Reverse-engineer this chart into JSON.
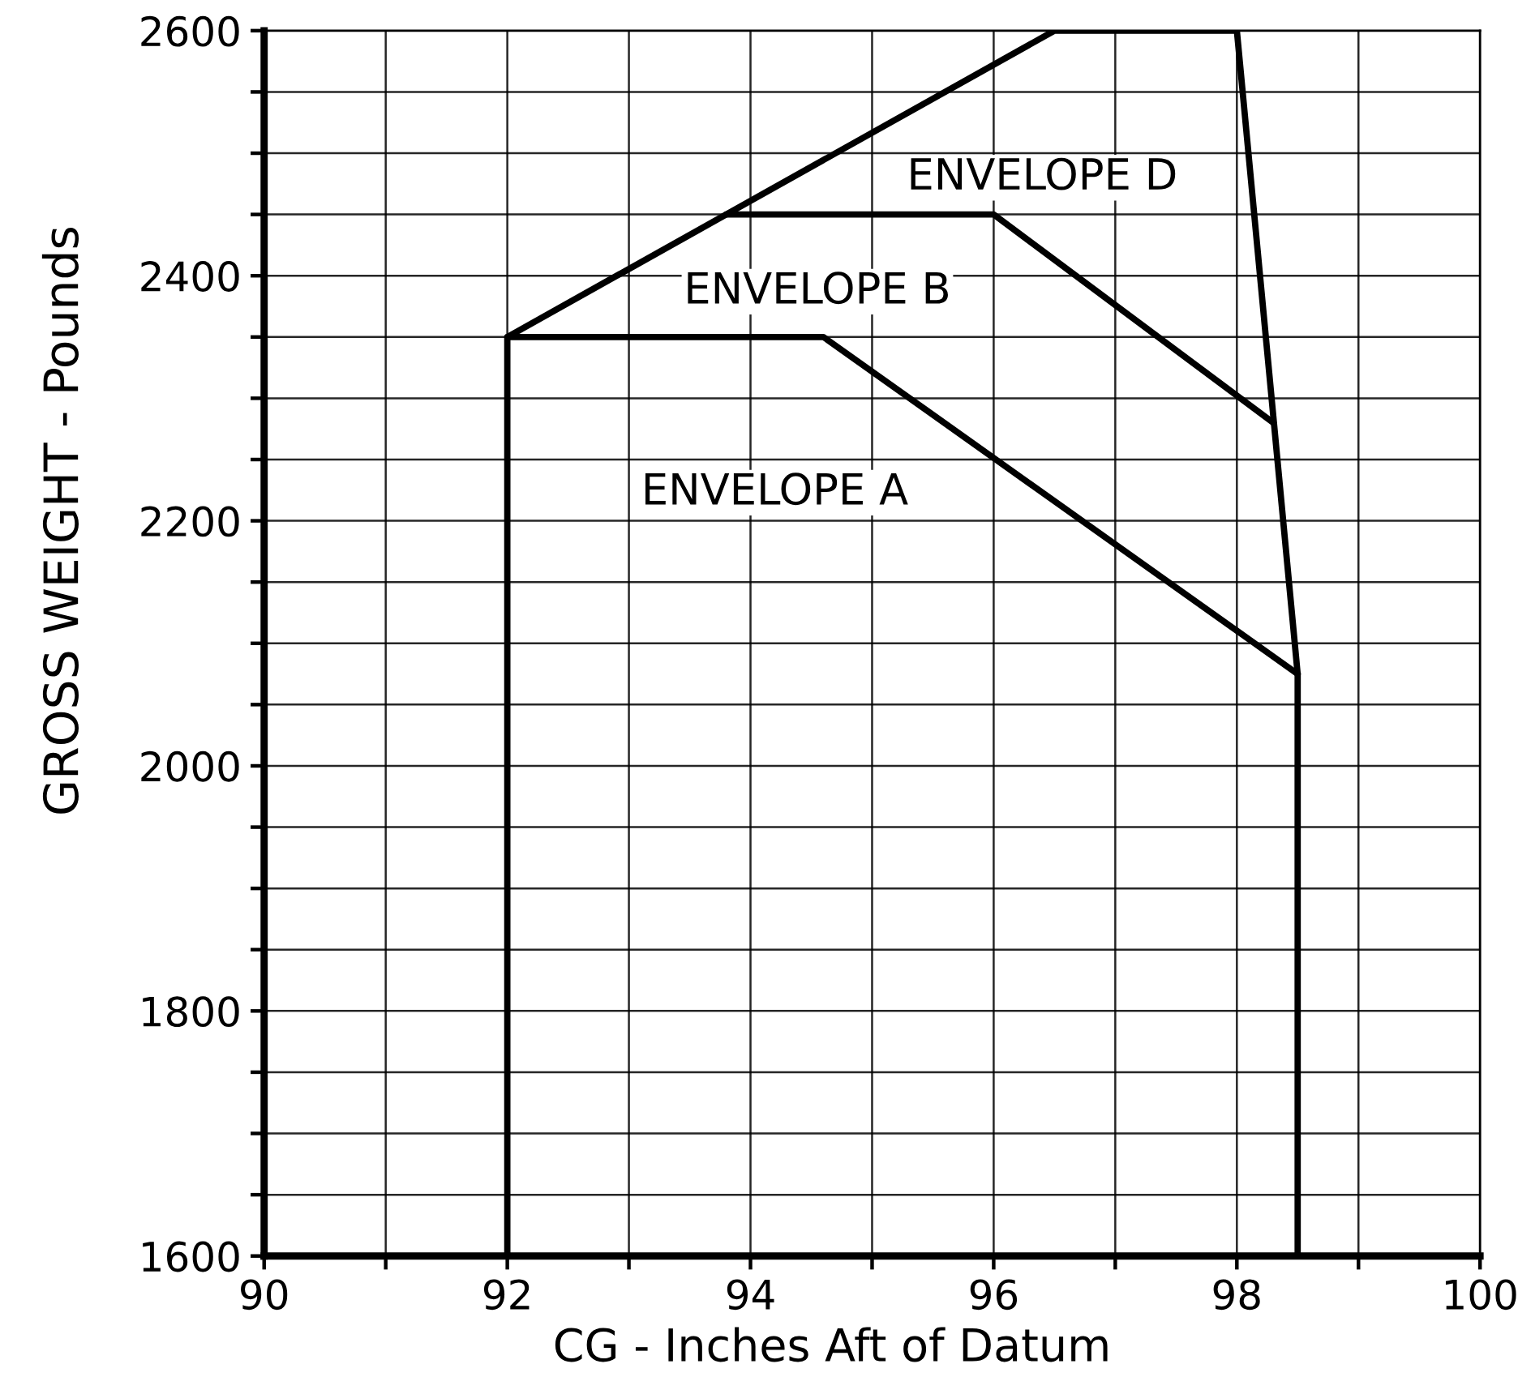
{
  "chart_data": {
    "type": "line",
    "xlabel": "CG - Inches Aft of Datum",
    "ylabel": "GROSS WEIGHT - Pounds",
    "series": [
      {
        "color": "#000000",
        "x": [
          92.0,
          92.0,
          96.5,
          98.0,
          98.5,
          98.5
        ],
        "values": [
          1600,
          2350,
          2600,
          2600,
          2075,
          1600
        ]
      },
      {
        "color": "#000000",
        "x": [
          93.8,
          96.0,
          98.3
        ],
        "values": [
          2450,
          2450,
          2280
        ]
      },
      {
        "color": "#000000",
        "x": [
          92.0,
          94.6,
          98.5
        ],
        "values": [
          2350,
          2350,
          2075
        ]
      }
    ],
    "annotations": [
      "ENVELOPE D",
      "ENVELOPE B",
      "ENVELOPE A"
    ],
    "xlim": [
      90,
      100
    ],
    "xticks": [
      90,
      {
        "value": 91,
        "label": null
      },
      92,
      {
        "value": 93,
        "label": null
      },
      94,
      {
        "value": 95,
        "label": null
      },
      96,
      {
        "value": 97,
        "label": null
      },
      98,
      {
        "value": 99,
        "label": null
      },
      100
    ],
    "ylim": [
      1600,
      2600
    ],
    "yticks": [
      1600,
      {
        "value": 1650,
        "label": null
      },
      {
        "value": 1700,
        "label": null
      },
      {
        "value": 1750,
        "label": null
      },
      1800,
      {
        "value": 1850,
        "label": null
      },
      {
        "value": 1900,
        "label": null
      },
      {
        "value": 1950,
        "label": null
      },
      2000,
      {
        "value": 2050,
        "label": null
      },
      {
        "value": 2100,
        "label": null
      },
      {
        "value": 2150,
        "label": null
      },
      2200,
      {
        "value": 2250,
        "label": null
      },
      {
        "value": 2300,
        "label": null
      },
      {
        "value": 2350,
        "label": null
      },
      2400,
      {
        "value": 2450,
        "label": null
      },
      {
        "value": 2500,
        "label": null
      },
      {
        "value": 2550,
        "label": null
      },
      2600
    ],
    "grid": true
  }
}
